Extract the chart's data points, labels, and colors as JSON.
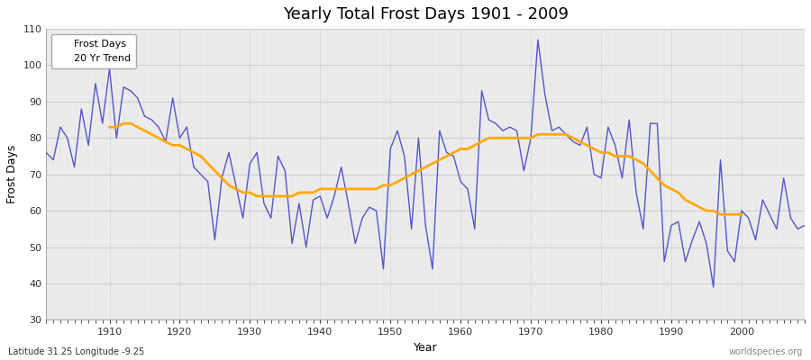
{
  "title": "Yearly Total Frost Days 1901 - 2009",
  "xlabel": "Year",
  "ylabel": "Frost Days",
  "subtitle": "Latitude 31.25 Longitude -9.25",
  "watermark": "worldspecies.org",
  "legend_labels": [
    "Frost Days",
    "20 Yr Trend"
  ],
  "line_color": "#5555cc",
  "trend_color": "#ffaa00",
  "plot_bg": "#ebebeb",
  "fig_bg": "#ffffff",
  "ylim": [
    30,
    110
  ],
  "yticks": [
    30,
    40,
    50,
    60,
    70,
    80,
    90,
    100,
    110
  ],
  "xlim_left": 1901,
  "xlim_right": 2009,
  "years": [
    1901,
    1902,
    1903,
    1904,
    1905,
    1906,
    1907,
    1908,
    1909,
    1910,
    1911,
    1912,
    1913,
    1914,
    1915,
    1916,
    1917,
    1918,
    1919,
    1920,
    1921,
    1922,
    1923,
    1924,
    1925,
    1926,
    1927,
    1928,
    1929,
    1930,
    1931,
    1932,
    1933,
    1934,
    1935,
    1936,
    1937,
    1938,
    1939,
    1940,
    1941,
    1942,
    1943,
    1944,
    1945,
    1946,
    1947,
    1948,
    1949,
    1950,
    1951,
    1952,
    1953,
    1954,
    1955,
    1956,
    1957,
    1958,
    1959,
    1960,
    1961,
    1962,
    1963,
    1964,
    1965,
    1966,
    1967,
    1968,
    1969,
    1970,
    1971,
    1972,
    1973,
    1974,
    1975,
    1976,
    1977,
    1978,
    1979,
    1980,
    1981,
    1982,
    1983,
    1984,
    1985,
    1986,
    1987,
    1988,
    1989,
    1990,
    1991,
    1992,
    1993,
    1994,
    1995,
    1996,
    1997,
    1998,
    1999,
    2000,
    2001,
    2002,
    2003,
    2004,
    2005,
    2006,
    2007,
    2008,
    2009
  ],
  "frost_days": [
    76,
    74,
    83,
    80,
    72,
    88,
    78,
    95,
    84,
    99,
    80,
    94,
    93,
    91,
    86,
    85,
    83,
    79,
    91,
    80,
    83,
    72,
    70,
    68,
    52,
    69,
    76,
    67,
    58,
    73,
    76,
    62,
    58,
    75,
    71,
    51,
    62,
    50,
    63,
    64,
    58,
    64,
    72,
    62,
    51,
    58,
    61,
    60,
    44,
    77,
    82,
    75,
    55,
    80,
    56,
    44,
    82,
    76,
    75,
    68,
    66,
    55,
    93,
    85,
    84,
    82,
    83,
    82,
    71,
    80,
    107,
    92,
    82,
    83,
    81,
    79,
    78,
    83,
    70,
    69,
    83,
    78,
    69,
    85,
    65,
    55,
    84,
    84,
    46,
    56,
    57,
    46,
    52,
    57,
    51,
    39,
    74,
    49,
    46,
    60,
    58,
    52,
    63,
    59,
    55,
    69,
    58,
    55,
    56
  ],
  "trend_values": [
    null,
    null,
    null,
    null,
    null,
    null,
    null,
    null,
    null,
    83,
    83,
    84,
    84,
    83,
    82,
    81,
    80,
    79,
    78,
    78,
    77,
    76,
    75,
    73,
    71,
    69,
    67,
    66,
    65,
    65,
    64,
    64,
    64,
    64,
    64,
    64,
    65,
    65,
    65,
    66,
    66,
    66,
    66,
    66,
    66,
    66,
    66,
    66,
    67,
    67,
    68,
    69,
    70,
    71,
    72,
    73,
    74,
    75,
    76,
    77,
    77,
    78,
    79,
    80,
    80,
    80,
    80,
    80,
    80,
    80,
    81,
    81,
    81,
    81,
    81,
    80,
    79,
    78,
    77,
    76,
    76,
    75,
    75,
    75,
    74,
    73,
    71,
    69,
    67,
    66,
    65,
    63,
    62,
    61,
    60,
    60,
    59,
    59,
    59,
    59,
    null,
    null,
    null,
    null,
    null,
    null,
    null,
    null,
    null
  ]
}
